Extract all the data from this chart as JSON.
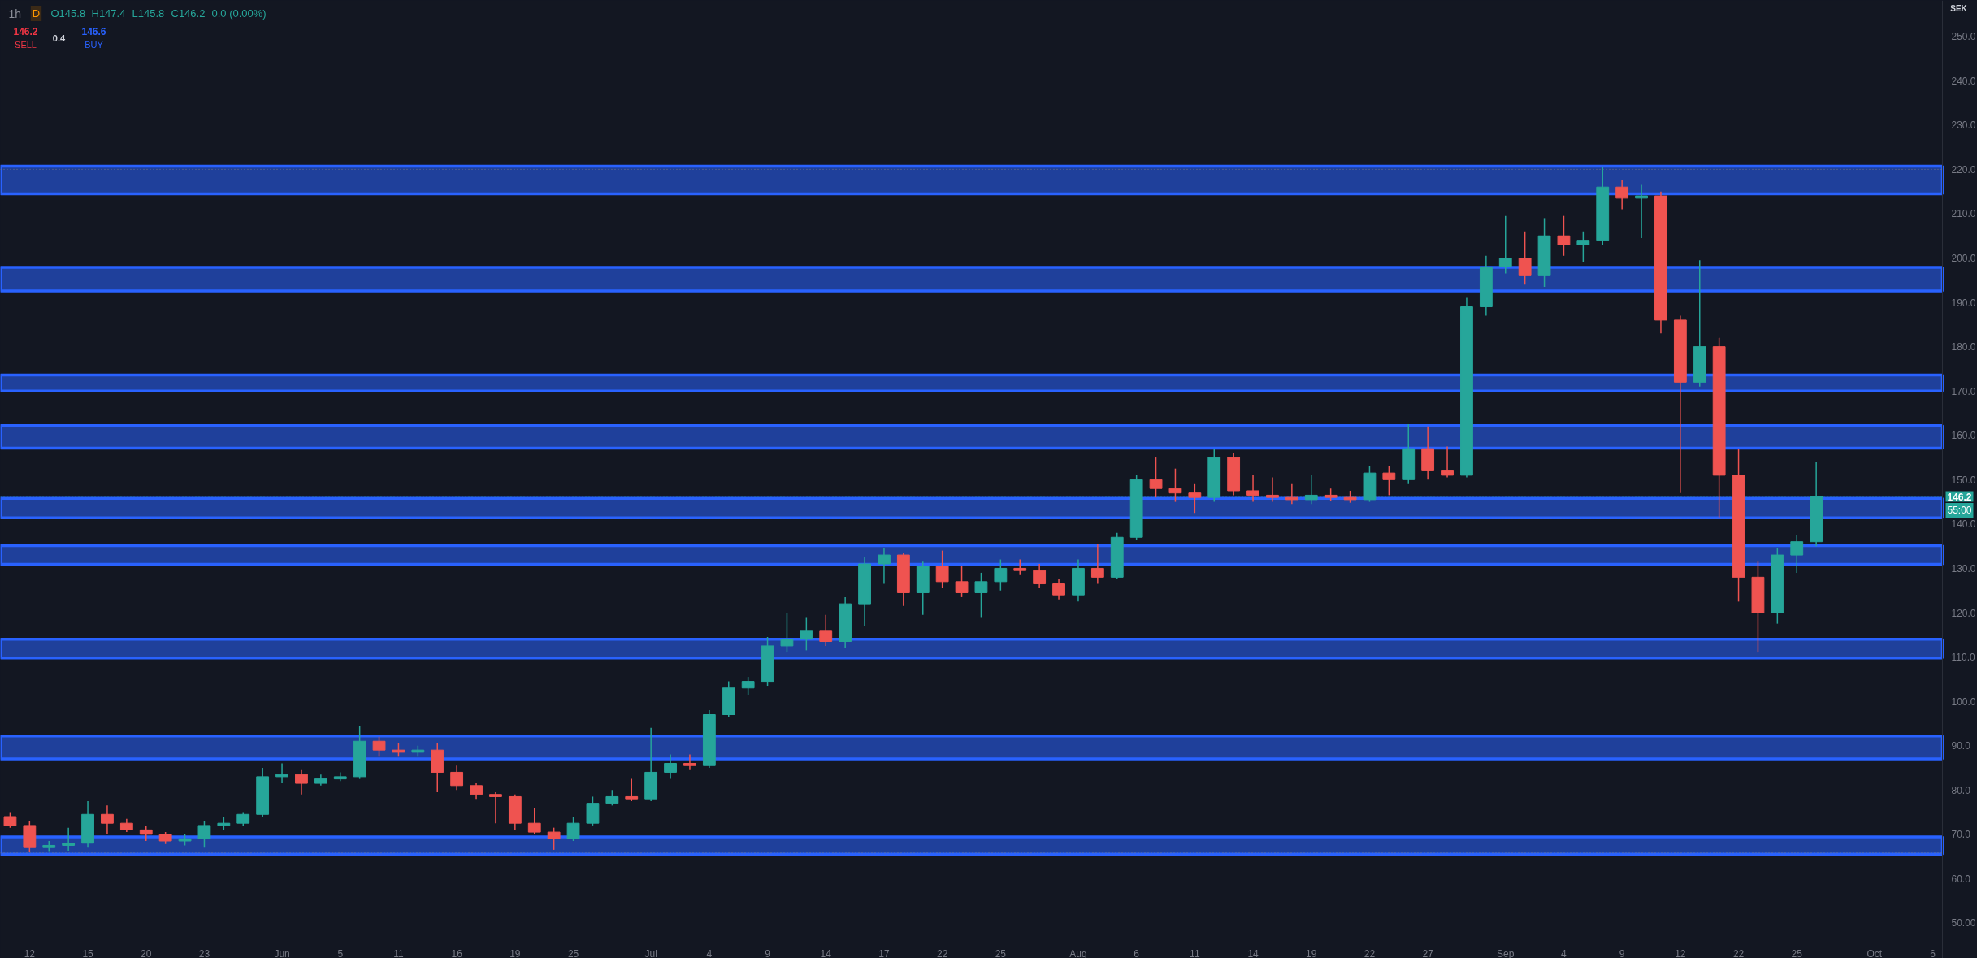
{
  "chart_data": {
    "type": "candlestick",
    "title": "1h",
    "categories": [
      null,
      "12",
      null,
      null,
      "15",
      null,
      null,
      "20",
      null,
      null,
      "23",
      null,
      null,
      null,
      "Jun",
      null,
      null,
      "5",
      null,
      null,
      "11",
      null,
      null,
      "16",
      null,
      null,
      "19",
      null,
      null,
      "25",
      null,
      null,
      null,
      "Jul",
      null,
      null,
      "4",
      null,
      null,
      "9",
      null,
      null,
      "14",
      null,
      null,
      "17",
      null,
      null,
      "22",
      null,
      null,
      "25",
      null,
      null,
      null,
      "Aug",
      null,
      null,
      "6",
      null,
      null,
      "11",
      null,
      null,
      "14",
      null,
      null,
      "19",
      null,
      null,
      "22",
      null,
      null,
      "27",
      null,
      null,
      null,
      "Sep",
      null,
      null,
      "4",
      null,
      null,
      "9",
      null,
      null,
      "12",
      null,
      null,
      "22",
      null,
      null,
      "25",
      null,
      null,
      null,
      "Oct",
      null,
      null,
      "6"
    ],
    "ohlc": [
      [
        74,
        75,
        71.5,
        72
      ],
      [
        72,
        73,
        66,
        67
      ],
      [
        67,
        68.5,
        66.2,
        67.5
      ],
      [
        67.5,
        71.5,
        66.3,
        68
      ],
      [
        68,
        77.5,
        67,
        74.5
      ],
      [
        74.5,
        76.5,
        70,
        72.5
      ],
      [
        72.5,
        73.5,
        70.5,
        71
      ],
      [
        71,
        72,
        68.5,
        70
      ],
      [
        70,
        70.5,
        67.8,
        68.5
      ],
      [
        68.5,
        70,
        67.5,
        69
      ],
      [
        69,
        73,
        67,
        72
      ],
      [
        72,
        74,
        71,
        72.5
      ],
      [
        72.5,
        75,
        72,
        74.5
      ],
      [
        74.5,
        85,
        74,
        83
      ],
      [
        83,
        86,
        81.5,
        83.5
      ],
      [
        83.5,
        84.5,
        79,
        81.5
      ],
      [
        81.5,
        83.5,
        81,
        82.5
      ],
      [
        82.5,
        84,
        82,
        83
      ],
      [
        83,
        94.5,
        82.5,
        91
      ],
      [
        91,
        92,
        87.5,
        89
      ],
      [
        89,
        90.5,
        87.5,
        88.5
      ],
      [
        88.5,
        90,
        87.5,
        89
      ],
      [
        89,
        90.5,
        79.5,
        84
      ],
      [
        84,
        85.5,
        80,
        81
      ],
      [
        81,
        81.5,
        78,
        79
      ],
      [
        79,
        79.5,
        72.5,
        78.5
      ],
      [
        78.5,
        79,
        71,
        72.5
      ],
      [
        72.5,
        76,
        70,
        70.5
      ],
      [
        70.5,
        71.5,
        66.5,
        69
      ],
      [
        69,
        74,
        68.5,
        72.5
      ],
      [
        72.5,
        78.5,
        72,
        77
      ],
      [
        77,
        80,
        76.5,
        78.5
      ],
      [
        78.5,
        82.5,
        77.5,
        78
      ],
      [
        78,
        94,
        77.5,
        84
      ],
      [
        84,
        88,
        82.5,
        86
      ],
      [
        86,
        88,
        84.5,
        85.5
      ],
      [
        85.5,
        98,
        85,
        97
      ],
      [
        97,
        104.5,
        96.5,
        103
      ],
      [
        103,
        105.5,
        101.5,
        104.5
      ],
      [
        104.5,
        114.5,
        103.5,
        112.5
      ],
      [
        112.5,
        120,
        111,
        114
      ],
      [
        114,
        119,
        111.5,
        116
      ],
      [
        116,
        119.5,
        112.5,
        113.5
      ],
      [
        113.5,
        123.5,
        112,
        122
      ],
      [
        122,
        132.5,
        117,
        131
      ],
      [
        131,
        134.5,
        126.5,
        133
      ],
      [
        133,
        133.5,
        121.5,
        124.5
      ],
      [
        124.5,
        131.5,
        119.5,
        130.5
      ],
      [
        130.5,
        134,
        125.5,
        127
      ],
      [
        127,
        130.5,
        123.5,
        124.5
      ],
      [
        124.5,
        129,
        119,
        127
      ],
      [
        127,
        132,
        125,
        130
      ],
      [
        130,
        132,
        128.5,
        129.5
      ],
      [
        129.5,
        131,
        125.5,
        126.5
      ],
      [
        126.5,
        127.5,
        123,
        124
      ],
      [
        124,
        132,
        122.5,
        130
      ],
      [
        130,
        135.5,
        126.5,
        128
      ],
      [
        128,
        138,
        127.5,
        137
      ],
      [
        137,
        151,
        136.5,
        150
      ],
      [
        150,
        155,
        146,
        148
      ],
      [
        148,
        152.5,
        145,
        147
      ],
      [
        147,
        149,
        142.5,
        146
      ],
      [
        146,
        157,
        145,
        155
      ],
      [
        155,
        156,
        146.5,
        147.5
      ],
      [
        147.5,
        151,
        145,
        146.5
      ],
      [
        146.5,
        150.5,
        145,
        146
      ],
      [
        146,
        149,
        144.5,
        145.5
      ],
      [
        145.5,
        151,
        144.5,
        146.5
      ],
      [
        146.5,
        148,
        145.2,
        146
      ],
      [
        146,
        147.5,
        144.8,
        145.5
      ],
      [
        145.5,
        153,
        145,
        151.5
      ],
      [
        151.5,
        153,
        146.5,
        150
      ],
      [
        150,
        162.5,
        149,
        157
      ],
      [
        157,
        162,
        150,
        152
      ],
      [
        152,
        157.5,
        150.5,
        151
      ],
      [
        151,
        191,
        150.5,
        189
      ],
      [
        189,
        200.5,
        187,
        198
      ],
      [
        198,
        209.5,
        196.5,
        200
      ],
      [
        200,
        206,
        194,
        196
      ],
      [
        196,
        209,
        193.5,
        205
      ],
      [
        205,
        209.5,
        200.5,
        203
      ],
      [
        203,
        206,
        199,
        204
      ],
      [
        204,
        220.5,
        203,
        216
      ],
      [
        216,
        217.5,
        211,
        213.5
      ],
      [
        213.5,
        216.5,
        204.5,
        214
      ],
      [
        214,
        215,
        183,
        186
      ],
      [
        186,
        187,
        147,
        172
      ],
      [
        172,
        199.5,
        171,
        180
      ],
      [
        180,
        182,
        141.5,
        151
      ],
      [
        151,
        157,
        122.5,
        128
      ],
      [
        128,
        131.5,
        111,
        120
      ],
      [
        120,
        134.5,
        117.5,
        133
      ],
      [
        133,
        137.5,
        129,
        136
      ],
      [
        136,
        154,
        135,
        146.2
      ],
      null,
      null,
      null,
      null,
      null,
      null
    ],
    "colors": [
      "#ef5350",
      "#ef5350",
      "#26a69a",
      "#26a69a",
      "#26a69a",
      "#ef5350",
      "#ef5350",
      "#ef5350",
      "#ef5350",
      "#26a69a",
      "#26a69a",
      "#26a69a",
      "#26a69a",
      "#26a69a",
      "#26a69a",
      "#ef5350",
      "#26a69a",
      "#26a69a",
      "#26a69a",
      "#ef5350",
      "#ef5350",
      "#26a69a",
      "#ef5350",
      "#ef5350",
      "#ef5350",
      "#ef5350",
      "#ef5350",
      "#ef5350",
      "#ef5350",
      "#26a69a",
      "#26a69a",
      "#26a69a",
      "#ef5350",
      "#26a69a",
      "#26a69a",
      "#ef5350",
      "#26a69a",
      "#26a69a",
      "#26a69a",
      "#26a69a",
      "#26a69a",
      "#26a69a",
      "#ef5350",
      "#26a69a",
      "#26a69a",
      "#26a69a",
      "#ef5350",
      "#26a69a",
      "#ef5350",
      "#ef5350",
      "#26a69a",
      "#26a69a",
      "#ef5350",
      "#ef5350",
      "#ef5350",
      "#26a69a",
      "#ef5350",
      "#26a69a",
      "#26a69a",
      "#ef5350",
      "#ef5350",
      "#ef5350",
      "#26a69a",
      "#ef5350",
      "#ef5350",
      "#ef5350",
      "#ef5350",
      "#26a69a",
      "#ef5350",
      "#ef5350",
      "#26a69a",
      "#ef5350",
      "#26a69a",
      "#ef5350",
      "#ef5350",
      "#26a69a",
      "#26a69a",
      "#26a69a",
      "#ef5350",
      "#26a69a",
      "#ef5350",
      "#26a69a",
      "#26a69a",
      "#ef5350",
      "#26a69a",
      "#ef5350",
      "#ef5350",
      "#26a69a",
      "#ef5350",
      "#ef5350",
      "#ef5350",
      "#26a69a",
      "#26a69a",
      "#26a69a",
      null,
      null,
      null,
      null,
      null,
      null
    ],
    "ylim": [
      45.5,
      258.1
    ],
    "yticks": [
      {
        "value": 50,
        "label": "50.00"
      },
      {
        "value": 60,
        "label": "60.0"
      },
      {
        "value": 70,
        "label": "70.0"
      },
      {
        "value": 80,
        "label": "80.0"
      },
      {
        "value": 90,
        "label": "90.0"
      },
      {
        "value": 100,
        "label": "100.0"
      },
      {
        "value": 110,
        "label": "110.0"
      },
      {
        "value": 120,
        "label": "120.0"
      },
      {
        "value": 130,
        "label": "130.0"
      },
      {
        "value": 140,
        "label": "140.0"
      },
      {
        "value": 150,
        "label": "150.0"
      },
      {
        "value": 160,
        "label": "160.0"
      },
      {
        "value": 170,
        "label": "170.0"
      },
      {
        "value": 180,
        "label": "180.0"
      },
      {
        "value": 190,
        "label": "190.0"
      },
      {
        "value": 200,
        "label": "200.0"
      },
      {
        "value": 210,
        "label": "210.0"
      },
      {
        "value": 220,
        "label": "220.0"
      },
      {
        "value": 230,
        "label": "230.0"
      },
      {
        "value": 240,
        "label": "240.0"
      },
      {
        "value": 250,
        "label": "250.0"
      }
    ],
    "bands": [
      {
        "axis": "y",
        "from": 65.5,
        "to": 69.4,
        "color": "#2962ff"
      },
      {
        "axis": "y",
        "from": 87.0,
        "to": 92.2,
        "color": "#2962ff"
      },
      {
        "axis": "y",
        "from": 109.8,
        "to": 114.0,
        "color": "#2962ff"
      },
      {
        "axis": "y",
        "from": 130.9,
        "to": 135.1,
        "color": "#2962ff"
      },
      {
        "axis": "y",
        "from": 141.4,
        "to": 145.8,
        "color": "#2962ff"
      },
      {
        "axis": "y",
        "from": 157.1,
        "to": 162.2,
        "color": "#2962ff"
      },
      {
        "axis": "y",
        "from": 170.0,
        "to": 173.6,
        "color": "#2962ff"
      },
      {
        "axis": "y",
        "from": 192.6,
        "to": 197.9,
        "color": "#2962ff"
      },
      {
        "axis": "y",
        "from": 214.5,
        "to": 220.7,
        "color": "#2962ff"
      }
    ],
    "ref_lines": [
      {
        "axis": "y",
        "value": 220.0,
        "color": "#787b86",
        "line_style": "dotted"
      },
      {
        "axis": "y",
        "value": 146.2,
        "label": "146.2",
        "color": "#26a69a",
        "line_style": "dotted"
      },
      {
        "axis": "y",
        "value": 141.3,
        "color": "#787b86",
        "line_style": "dotted"
      },
      {
        "axis": "y",
        "value": 65.8,
        "color": "#787b86",
        "line_style": "dotted"
      }
    ],
    "annotations": [
      "D",
      "O145.8",
      "H147.4",
      "L145.8",
      "C146.2",
      "0.0 (0.00%)",
      "146.2",
      "SELL",
      "0.4",
      "146.6",
      "BUY",
      "55:00",
      "SEK"
    ]
  }
}
